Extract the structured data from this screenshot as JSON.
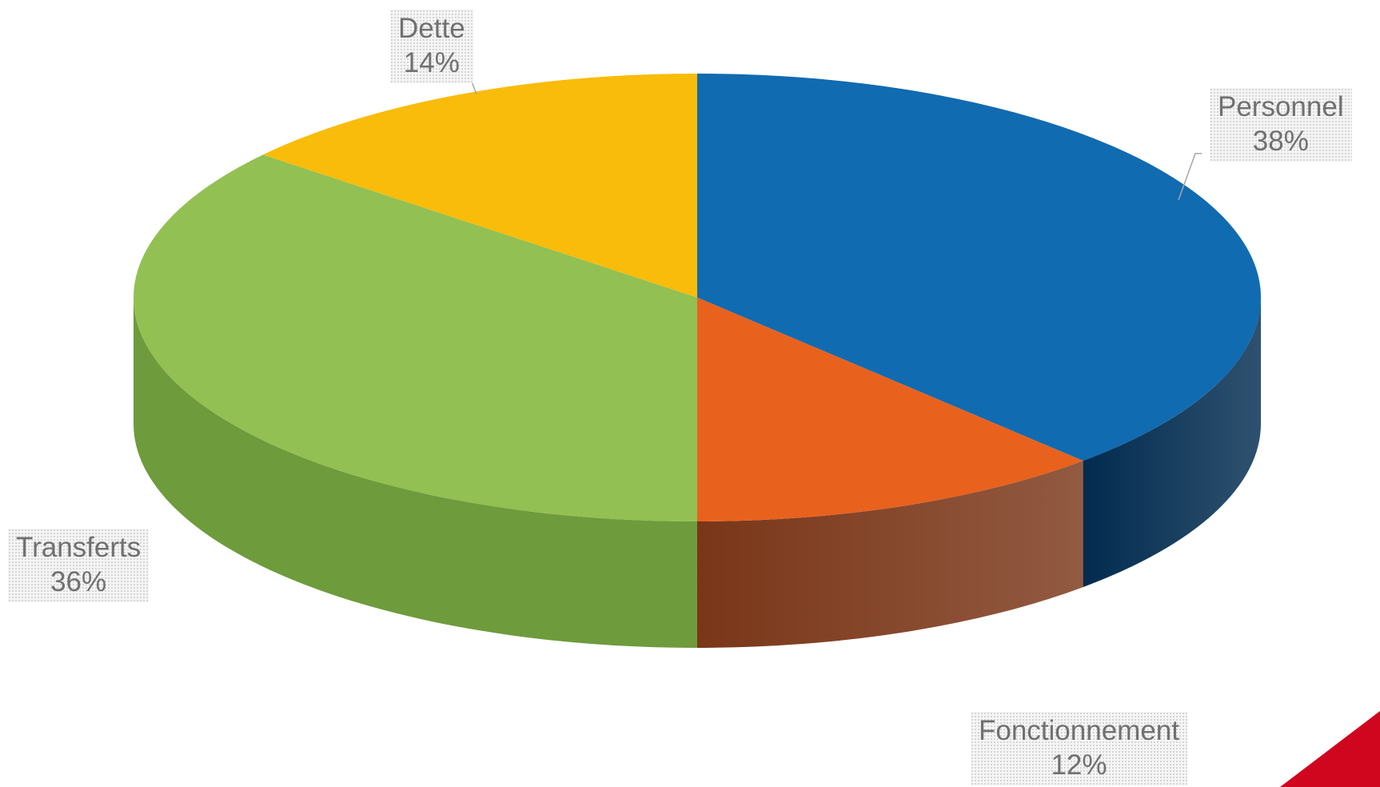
{
  "chart_data": {
    "type": "pie",
    "title": "",
    "style": "3d",
    "categories": [
      "Personnel",
      "Fonctionnement",
      "Transferts",
      "Dette"
    ],
    "values": [
      38,
      12,
      36,
      14
    ],
    "value_labels": [
      "38%",
      "12%",
      "36%",
      "14%"
    ],
    "unit": "%",
    "colors": [
      "#116BB0",
      "#E8621E",
      "#92C052",
      "#F9BC0B"
    ],
    "side_colors": [
      "#012B4F",
      "#7A3618",
      "#6E9B3C",
      "#9E7A06"
    ],
    "legend": "none",
    "start_angle_deg": 0,
    "direction": "clockwise"
  },
  "decor": {
    "corner_accent_color": "#D0061F"
  }
}
